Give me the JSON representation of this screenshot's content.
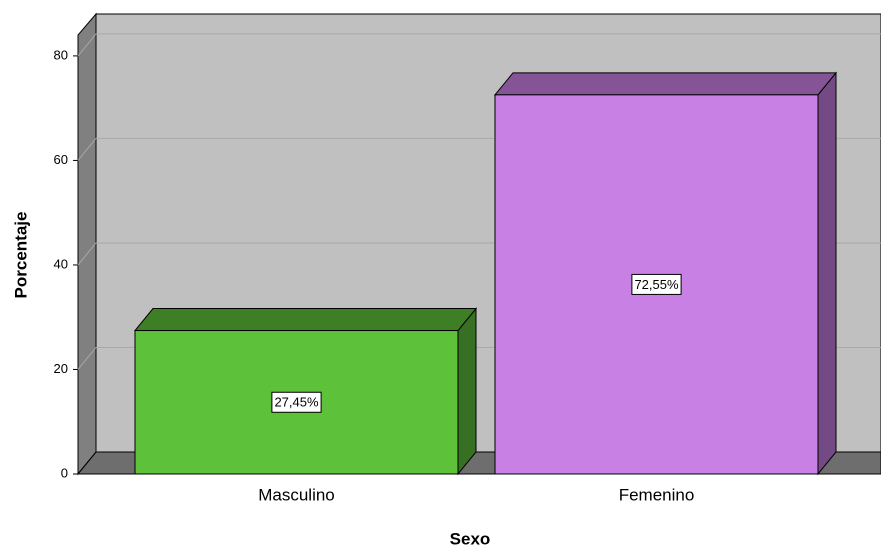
{
  "chart_data": {
    "type": "bar3d",
    "x_label": "Sexo",
    "y_label": "Porcentaje",
    "categories": [
      "Masculino",
      "Femenino"
    ],
    "values": [
      27.45,
      72.55
    ],
    "value_labels": [
      "27,45%",
      "72,55%"
    ],
    "colors": [
      "#5ec13a",
      "#c880e4"
    ],
    "ylim": [
      0,
      84
    ],
    "yticks": [
      0,
      20,
      40,
      60,
      80
    ],
    "grid": true
  }
}
